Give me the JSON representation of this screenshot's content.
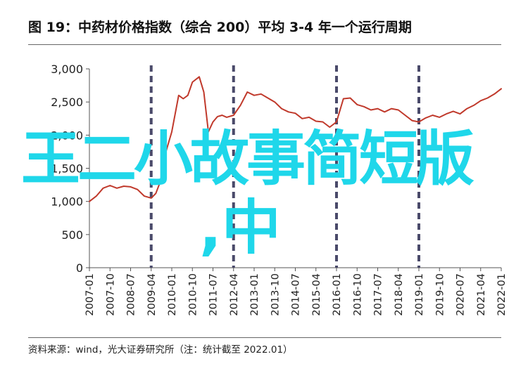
{
  "title": "图 19：中药材价格指数（综合 200）平均 3-4 年一个运行周期",
  "source": "资料来源：wind，光大证券研究所（注：统计截至 2022.01）",
  "overlay": {
    "line1": "王二小故事简短版",
    "line2": ",中"
  },
  "colors": {
    "line": "#c0392b",
    "dashed": "#4a4a6a",
    "overlay": "#1fd7ea",
    "axis": "#555555"
  },
  "chart_data": {
    "type": "line",
    "title": "图 19：中药材价格指数（综合 200）平均 3-4 年一个运行周期",
    "xlabel": "",
    "ylabel": "",
    "ylim": [
      0,
      3000
    ],
    "yticks": [
      0,
      500,
      1000,
      1500,
      2000,
      2500,
      3000
    ],
    "ytick_labels": [
      "0",
      "500",
      "1,000",
      "1,500",
      "2,000",
      "2,500",
      "3,000"
    ],
    "xlim": [
      "2007-01",
      "2022-01"
    ],
    "xtick_labels": [
      "2007-01",
      "2007-10",
      "2008-07",
      "2009-04",
      "2010-01",
      "2010-10",
      "2011-07",
      "2012-04",
      "2013-01",
      "2013-10",
      "2014-07",
      "2015-04",
      "2016-01",
      "2016-10",
      "2017-07",
      "2018-04",
      "2019-01",
      "2019-10",
      "2020-07",
      "2021-04",
      "2022-01"
    ],
    "grid": false,
    "legend": "none",
    "cycle_markers": [
      "2009-04",
      "2012-04",
      "2016-01",
      "2019-01"
    ],
    "series": [
      {
        "x": [
          "2007-01",
          "2007-04",
          "2007-07",
          "2007-10",
          "2008-01",
          "2008-04",
          "2008-07",
          "2008-10",
          "2009-01",
          "2009-04",
          "2009-06",
          "2009-08",
          "2009-10",
          "2010-01",
          "2010-04",
          "2010-06",
          "2010-08",
          "2010-10",
          "2011-01",
          "2011-03",
          "2011-05",
          "2011-07",
          "2011-09",
          "2011-11",
          "2012-01",
          "2012-04",
          "2012-07",
          "2012-10",
          "2013-01",
          "2013-04",
          "2013-07",
          "2013-10",
          "2014-01",
          "2014-04",
          "2014-07",
          "2014-10",
          "2015-01",
          "2015-04",
          "2015-07",
          "2015-10",
          "2016-01",
          "2016-04",
          "2016-07",
          "2016-10",
          "2017-01",
          "2017-04",
          "2017-07",
          "2017-10",
          "2018-01",
          "2018-04",
          "2018-07",
          "2018-10",
          "2019-01",
          "2019-04",
          "2019-07",
          "2019-10",
          "2020-01",
          "2020-04",
          "2020-07",
          "2020-10",
          "2021-01",
          "2021-04",
          "2021-07",
          "2021-10",
          "2022-01"
        ],
        "values": [
          1000,
          1080,
          1200,
          1240,
          1200,
          1230,
          1220,
          1180,
          1080,
          1050,
          1120,
          1300,
          1700,
          2050,
          2600,
          2550,
          2600,
          2800,
          2880,
          2650,
          2050,
          2200,
          2280,
          2300,
          2270,
          2300,
          2450,
          2650,
          2600,
          2620,
          2560,
          2500,
          2400,
          2350,
          2330,
          2250,
          2270,
          2210,
          2200,
          2120,
          2200,
          2550,
          2560,
          2460,
          2430,
          2380,
          2400,
          2350,
          2400,
          2380,
          2300,
          2220,
          2200,
          2260,
          2300,
          2270,
          2320,
          2360,
          2320,
          2400,
          2450,
          2520,
          2560,
          2620,
          2700
        ]
      }
    ]
  }
}
